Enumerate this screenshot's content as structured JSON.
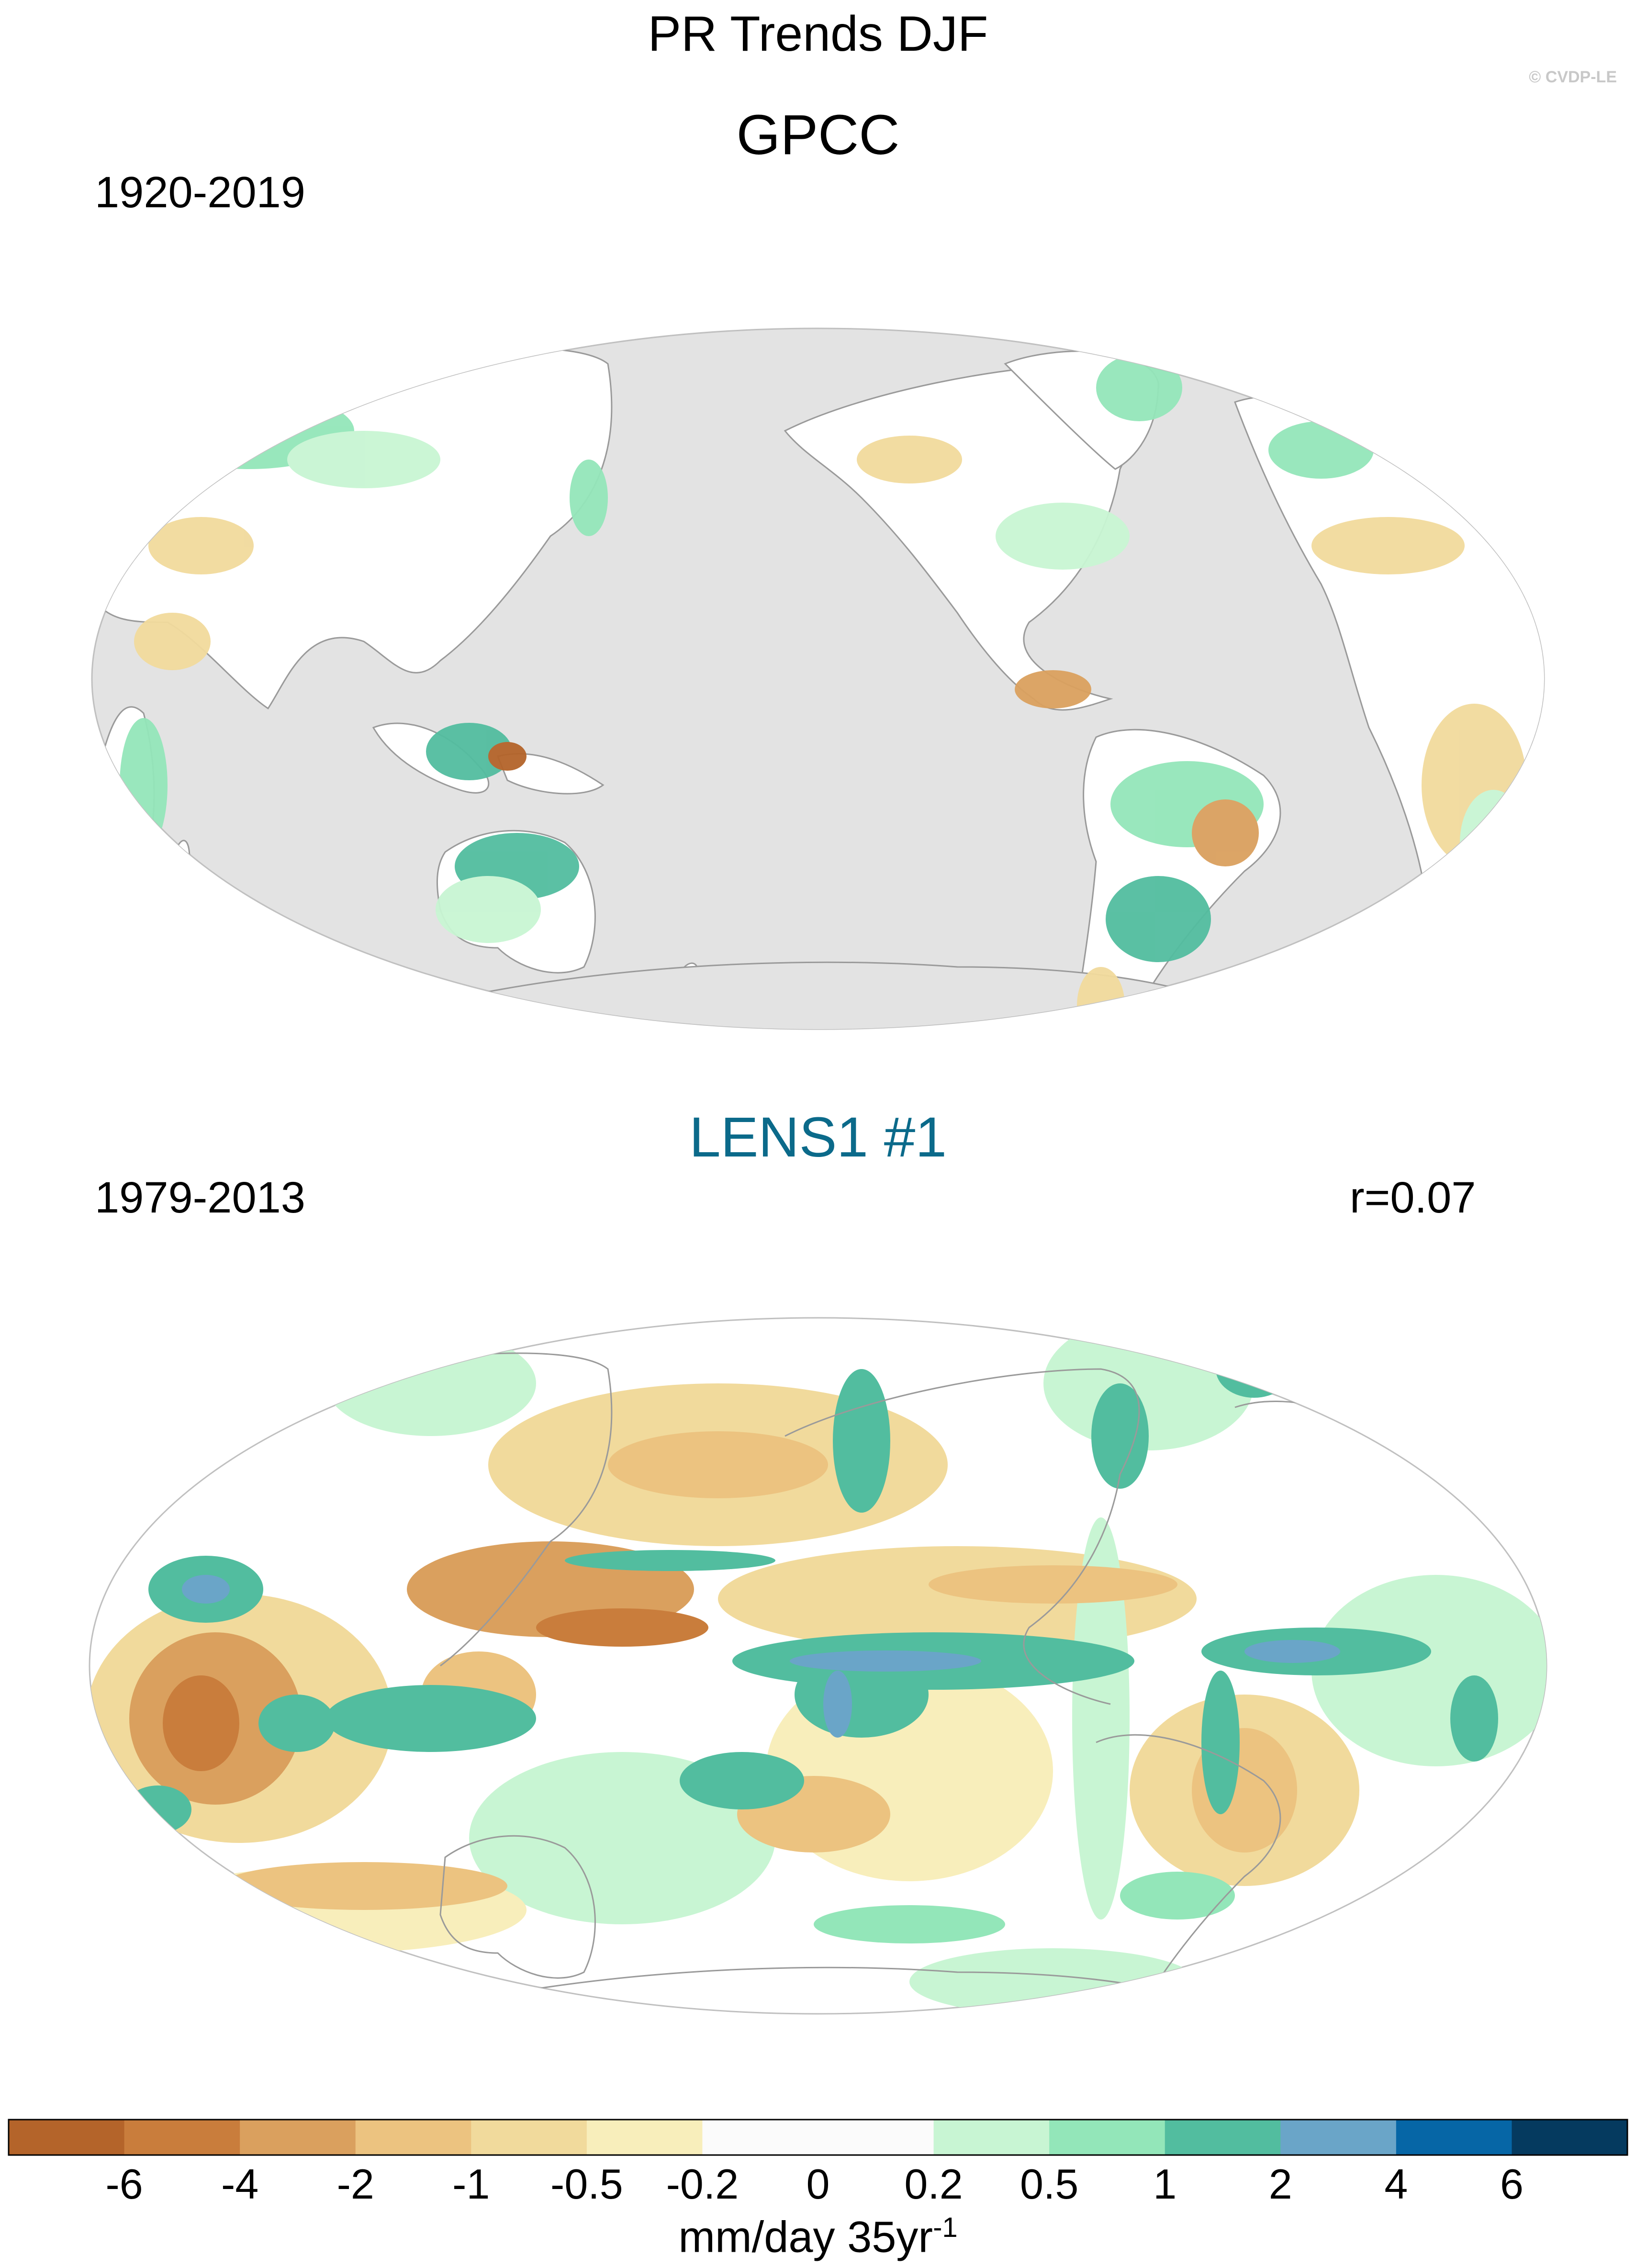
{
  "title": "PR Trends DJF",
  "copyright": "© CVDP-LE",
  "panels": [
    {
      "name": "GPCC",
      "period": "1920-2019",
      "correlation": "",
      "name_color": "#000000"
    },
    {
      "name": "LENS1 #1",
      "period": "1979-2013",
      "correlation": "r=0.07",
      "name_color": "#0b6a8a"
    }
  ],
  "colorbar": {
    "tick_labels": [
      "-6",
      "-4",
      "-2",
      "-1",
      "-0.5",
      "-0.2",
      "0",
      "0.2",
      "0.5",
      "1",
      "2",
      "4",
      "6"
    ],
    "colors": [
      "#b4642a",
      "#c97d3c",
      "#daa05e",
      "#ecc380",
      "#f1da9c",
      "#f8eebb",
      "#fbfbfb",
      "#fbfbfb",
      "#c8f5d3",
      "#93e6b9",
      "#52bd9f",
      "#6aa5c8",
      "#0666a6",
      "#053a5f"
    ],
    "units_text": "mm/day 35yr",
    "units_superscript": "-1"
  }
}
